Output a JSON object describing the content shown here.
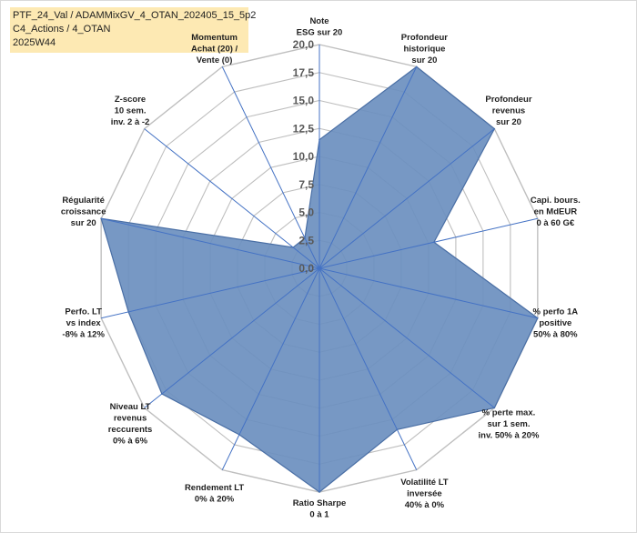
{
  "header": {
    "line1": "PTF_24_Val / ADAMMixGV_4_OTAN_202405_15_5p2",
    "line2": "C4_Actions / 4_OTAN",
    "line3": "2025W44"
  },
  "colors": {
    "series_fill": "#6b8fbf",
    "series_stroke": "#4a6fa5",
    "axis_spoke": "#4472c4",
    "grid": "#bfbfbf",
    "title_bg": "#fde9b3"
  },
  "chart_data": {
    "type": "radar",
    "title": "",
    "rmin": 0,
    "rmax": 20,
    "ticks": [
      "0,0",
      "2,5",
      "5,0",
      "7,5",
      "10,0",
      "12,5",
      "15,0",
      "17,5",
      "20,0"
    ],
    "categories": [
      "Note\nESG sur 20",
      "Profondeur\nhistorique\nsur 20",
      "Profondeur\nrevenus\nsur 20",
      "Capi. bours.\nen MdEUR\n0 à 60 G€",
      "% perfo 1A\npositive\n50% à 80%",
      "% perte max.\nsur 1 sem.\ninv. 50% à 20%",
      "Volatilité LT\ninversée\n40% à 0%",
      "Ratio Sharpe\n0 à 1",
      "Rendement LT\n0% à 20%",
      "Niveau LT\nrevenus\nreccurents\n0% à 6%",
      "Perfo. LT\nvs index\n-8% à 12%",
      "Régularité\ncroissance\nsur 20",
      "Z-score\n10 sem.\ninv. 2 à -2",
      "Momentum\nAchat (20) /\nVente (0)"
    ],
    "series": [
      {
        "values": [
          11.5,
          20,
          20,
          10.5,
          20,
          20,
          16,
          20,
          16.5,
          18,
          17.5,
          20,
          3,
          3
        ]
      }
    ]
  }
}
